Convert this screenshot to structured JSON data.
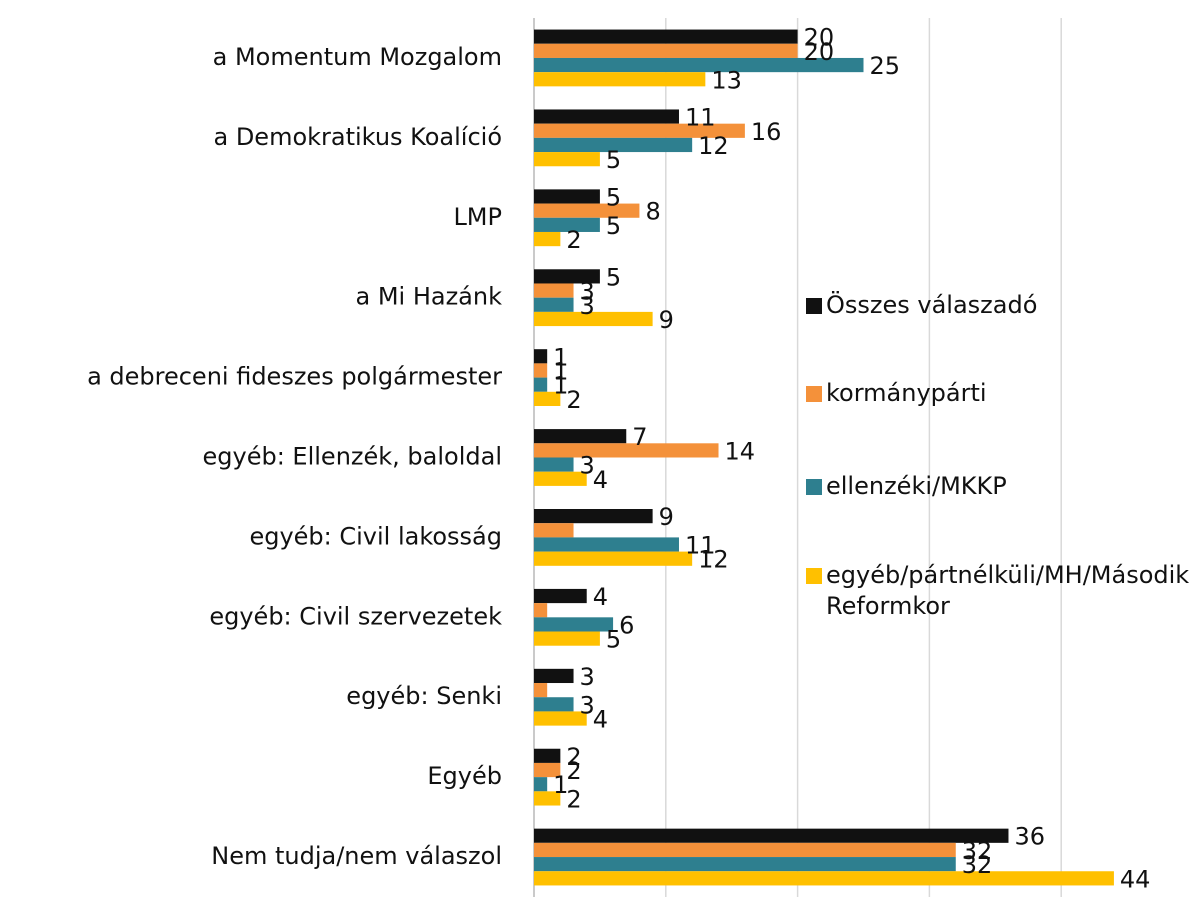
{
  "chart_data": {
    "type": "barh",
    "categories": [
      "a Momentum Mozgalom",
      "a Demokratikus Koalíció",
      "LMP",
      "a Mi Hazánk",
      "a debreceni fideszes polgármester",
      "egyéb: Ellenzék, baloldal",
      "egyéb: Civil lakosság",
      "egyéb: Civil szervezetek",
      "egyéb: Senki",
      "Egyéb",
      "Nem tudja/nem válaszol"
    ],
    "series": [
      {
        "name": "Összes válaszadó",
        "color": "#111111",
        "values": [
          20,
          11,
          5,
          5,
          1,
          7,
          9,
          4,
          3,
          2,
          36
        ]
      },
      {
        "name": "kormánypárti",
        "color": "#f4913a",
        "values": [
          20,
          16,
          8,
          3,
          1,
          14,
          3,
          1,
          1,
          2,
          32
        ],
        "value_labels": [
          "20",
          "16",
          "8",
          "3",
          "1",
          "14",
          null,
          null,
          null,
          "2",
          "32"
        ]
      },
      {
        "name": "ellenzéki/MKKP",
        "color": "#2e7f8f",
        "values": [
          25,
          12,
          5,
          3,
          1,
          3,
          11,
          6,
          3,
          1,
          32
        ]
      },
      {
        "name": "egyéb/pártnélküli/MH/Második Reformkor",
        "color": "#ffc000",
        "values": [
          13,
          5,
          2,
          9,
          2,
          4,
          12,
          5,
          4,
          2,
          44
        ]
      }
    ],
    "xlim": [
      0,
      50
    ],
    "xticks": [
      0,
      10,
      20,
      30,
      40
    ],
    "grid": true,
    "legend": "right"
  }
}
